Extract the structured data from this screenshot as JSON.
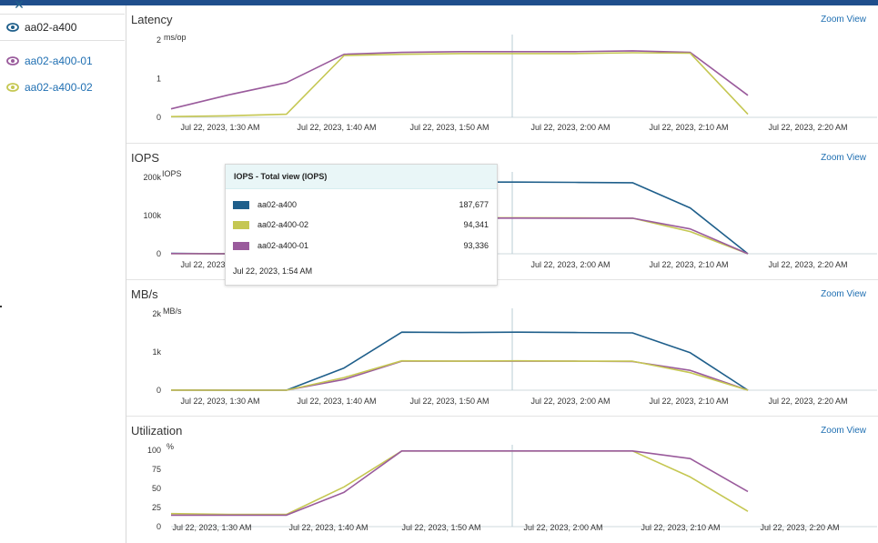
{
  "sidebar": {
    "items": [
      {
        "label": "aa02-a400",
        "color": "#1f5f8b"
      },
      {
        "label": "aa02-a400-01",
        "color": "#9a5b9c"
      },
      {
        "label": "aa02-a400-02",
        "color": "#c5c752"
      }
    ]
  },
  "zoom_label": "Zoom View",
  "x_ticks": [
    "Jul 22, 2023, 1:30 AM",
    "Jul 22, 2023, 1:40 AM",
    "Jul 22, 2023, 1:50 AM",
    "Jul 22, 2023, 2:00 AM",
    "Jul 22, 2023, 2:10 AM",
    "Jul 22, 2023, 2:20 AM"
  ],
  "tooltip": {
    "title": "IOPS - Total view (IOPS)",
    "rows": [
      {
        "name": "aa02-a400",
        "value": "187,677",
        "color": "#1f5f8b"
      },
      {
        "name": "aa02-a400-02",
        "value": "94,341",
        "color": "#c5c752"
      },
      {
        "name": "aa02-a400-01",
        "value": "93,336",
        "color": "#9a5b9c"
      }
    ],
    "time": "Jul 22, 2023, 1:54 AM"
  },
  "chart_data": [
    {
      "type": "line",
      "title": "Latency",
      "ylabel": "ms/op",
      "yticks": [
        "0",
        "1",
        "2"
      ],
      "ylim": [
        0,
        2
      ],
      "x": [
        "1:25",
        "1:30",
        "1:35",
        "1:40",
        "1:45",
        "1:50",
        "1:55",
        "2:00",
        "2:05",
        "2:10",
        "2:15"
      ],
      "series": [
        {
          "name": "aa02-a400-01",
          "color": "#9a5b9c",
          "values": [
            0.22,
            0.58,
            0.9,
            1.63,
            1.68,
            1.7,
            1.7,
            1.7,
            1.72,
            1.68,
            0.57
          ]
        },
        {
          "name": "aa02-a400-02",
          "color": "#c5c752",
          "values": [
            0.02,
            0.04,
            0.08,
            1.6,
            1.63,
            1.65,
            1.65,
            1.65,
            1.67,
            1.66,
            0.08
          ]
        }
      ]
    },
    {
      "type": "line",
      "title": "IOPS",
      "ylabel": "IOPS",
      "yticks": [
        "0",
        "100k",
        "200k"
      ],
      "ylim": [
        0,
        200000
      ],
      "x": [
        "1:25",
        "1:30",
        "1:35",
        "1:40",
        "1:45",
        "1:50",
        "1:55",
        "2:00",
        "2:05",
        "2:10",
        "2:15"
      ],
      "series": [
        {
          "name": "aa02-a400",
          "color": "#1f5f8b",
          "values": [
            1000,
            0,
            0,
            0,
            0,
            187677,
            187677,
            187000,
            186000,
            120000,
            0
          ]
        },
        {
          "name": "aa02-a400-02",
          "color": "#c5c752",
          "values": [
            500,
            0,
            0,
            0,
            0,
            94341,
            94341,
            94000,
            93000,
            58000,
            0
          ]
        },
        {
          "name": "aa02-a400-01",
          "color": "#9a5b9c",
          "values": [
            500,
            0,
            0,
            0,
            0,
            93336,
            93336,
            93000,
            93000,
            65000,
            0
          ]
        }
      ]
    },
    {
      "type": "line",
      "title": "MB/s",
      "ylabel": "MB/s",
      "yticks": [
        "0",
        "1k",
        "2k"
      ],
      "ylim": [
        0,
        2000
      ],
      "x": [
        "1:25",
        "1:30",
        "1:35",
        "1:40",
        "1:45",
        "1:50",
        "1:55",
        "2:00",
        "2:05",
        "2:10",
        "2:15"
      ],
      "series": [
        {
          "name": "aa02-a400",
          "color": "#1f5f8b",
          "values": [
            5,
            0,
            0,
            580,
            1520,
            1510,
            1520,
            1510,
            1500,
            980,
            0
          ]
        },
        {
          "name": "aa02-a400-01",
          "color": "#9a5b9c",
          "values": [
            3,
            0,
            0,
            280,
            760,
            760,
            760,
            760,
            750,
            520,
            0
          ]
        },
        {
          "name": "aa02-a400-02",
          "color": "#c5c752",
          "values": [
            3,
            0,
            0,
            330,
            770,
            760,
            770,
            760,
            760,
            460,
            0
          ]
        }
      ]
    },
    {
      "type": "line",
      "title": "Utilization",
      "ylabel": "%",
      "yticks": [
        "0",
        "25",
        "50",
        "75",
        "100"
      ],
      "ylim": [
        0,
        100
      ],
      "x": [
        "1:25",
        "1:30",
        "1:35",
        "1:40",
        "1:45",
        "1:50",
        "1:55",
        "2:00",
        "2:05",
        "2:10",
        "2:15"
      ],
      "series": [
        {
          "name": "aa02-a400-02",
          "color": "#c5c752",
          "values": [
            17,
            16,
            16,
            52,
            99,
            99,
            99,
            99,
            99,
            65,
            20
          ]
        },
        {
          "name": "aa02-a400-01",
          "color": "#9a5b9c",
          "values": [
            15,
            15,
            15,
            45,
            99,
            99,
            99,
            99,
            99,
            89,
            46
          ]
        }
      ]
    }
  ]
}
